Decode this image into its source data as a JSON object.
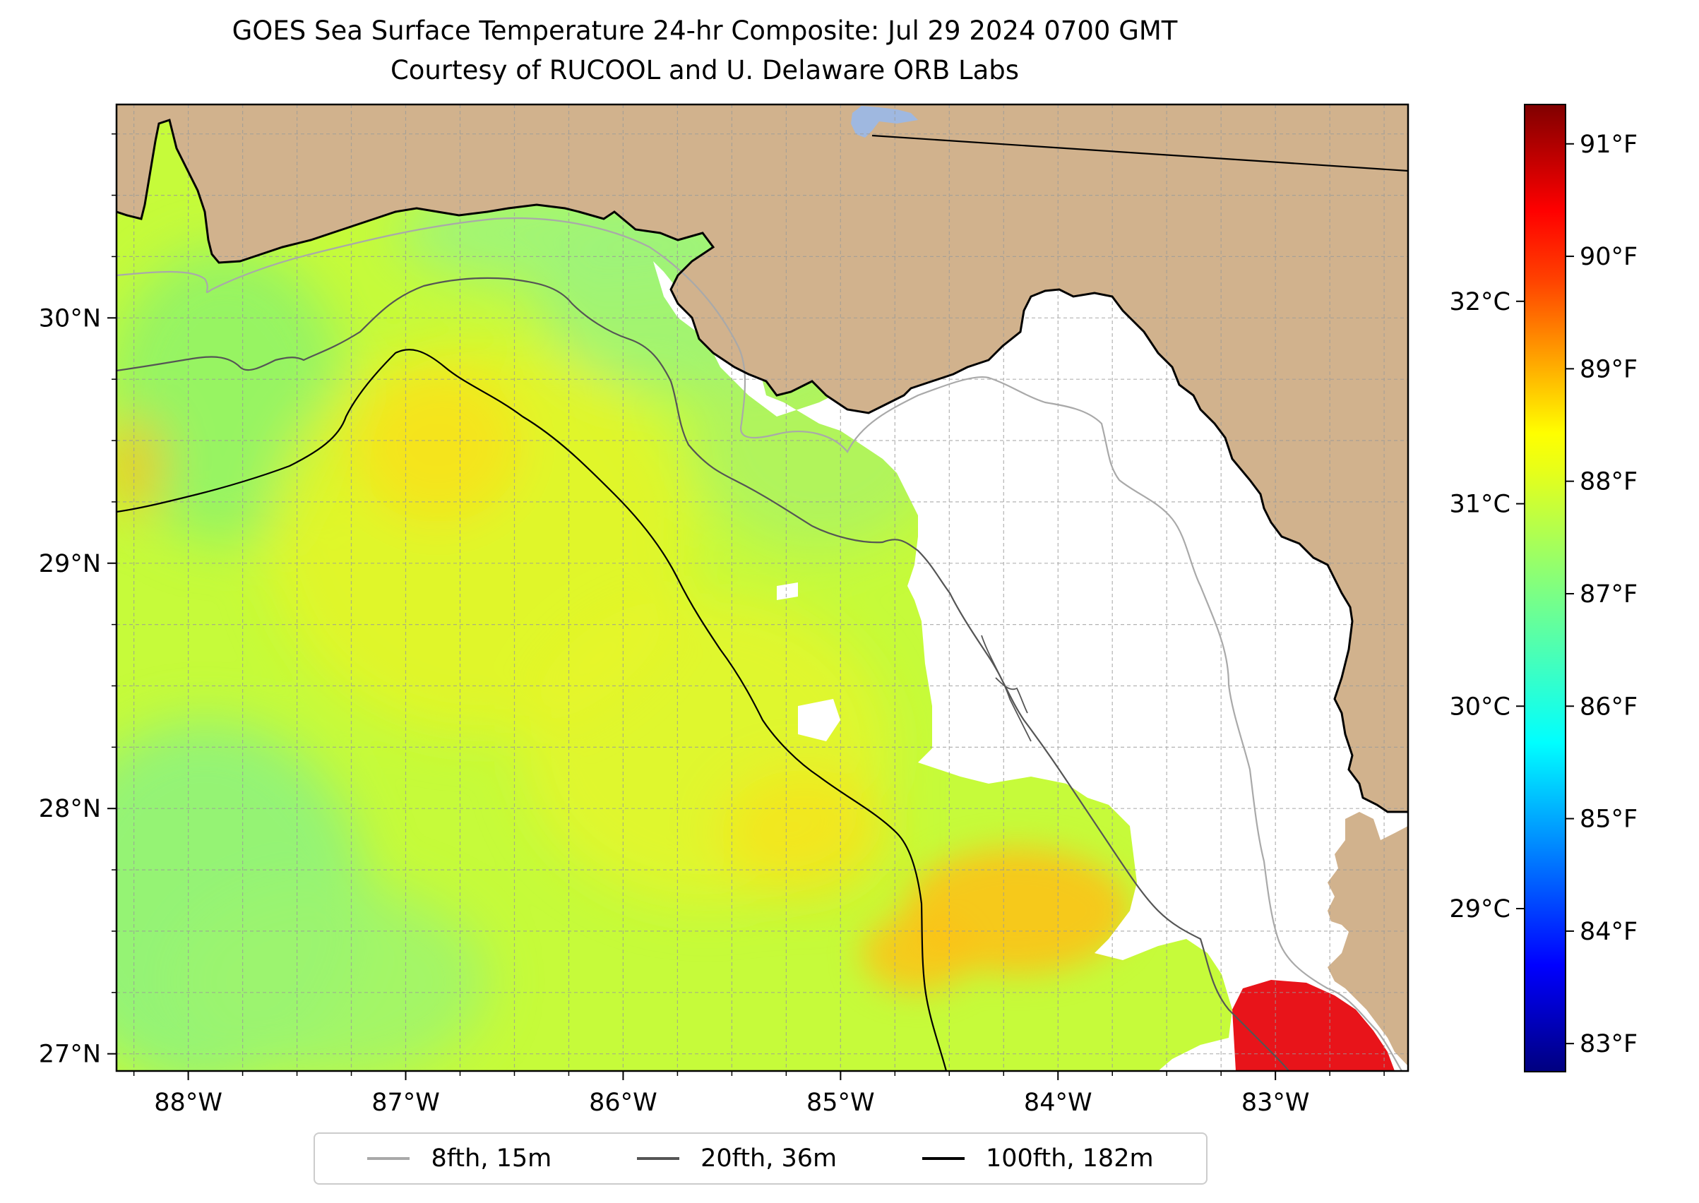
{
  "title": {
    "line1": "GOES Sea Surface Temperature 24-hr Composite: Jul 29 2024 0700 GMT",
    "line2": "Courtesy of RUCOOL and U. Delaware ORB Labs"
  },
  "map": {
    "lon_range": [
      -88.33,
      -82.39
    ],
    "lat_range": [
      26.93,
      30.87
    ],
    "lon_ticks": [
      {
        "value": -88,
        "label": "88°W"
      },
      {
        "value": -87,
        "label": "87°W"
      },
      {
        "value": -86,
        "label": "86°W"
      },
      {
        "value": -85,
        "label": "85°W"
      },
      {
        "value": -84,
        "label": "84°W"
      },
      {
        "value": -83,
        "label": "83°W"
      }
    ],
    "lat_ticks": [
      {
        "value": 27,
        "label": "27°N"
      },
      {
        "value": 28,
        "label": "28°N"
      },
      {
        "value": 29,
        "label": "29°N"
      },
      {
        "value": 30,
        "label": "30°N"
      }
    ],
    "gridlines": true,
    "grid_step_deg": 0.25,
    "land_color": "#d1b28d",
    "lake_color": "#9fb8e0",
    "no_data_color": "#ffffff"
  },
  "colorbar": {
    "colormap": "jet",
    "range_f": [
      82.75,
      91.35
    ],
    "fahrenheit_ticks": [
      {
        "value": 83,
        "label": "83°F"
      },
      {
        "value": 84,
        "label": "84°F"
      },
      {
        "value": 85,
        "label": "85°F"
      },
      {
        "value": 86,
        "label": "86°F"
      },
      {
        "value": 87,
        "label": "87°F"
      },
      {
        "value": 88,
        "label": "88°F"
      },
      {
        "value": 89,
        "label": "89°F"
      },
      {
        "value": 90,
        "label": "90°F"
      },
      {
        "value": 91,
        "label": "91°F"
      }
    ],
    "celsius_ticks": [
      {
        "value": 29,
        "label": "29°C"
      },
      {
        "value": 30,
        "label": "30°C"
      },
      {
        "value": 31,
        "label": "31°C"
      },
      {
        "value": 32,
        "label": "32°C"
      }
    ]
  },
  "legend": {
    "placement": "bottom-center",
    "items": [
      {
        "label": "8fth, 15m",
        "color": "#a9a9a9"
      },
      {
        "label": "20fth, 36m",
        "color": "#555555"
      },
      {
        "label": "100fth, 182m",
        "color": "#000000"
      }
    ]
  }
}
